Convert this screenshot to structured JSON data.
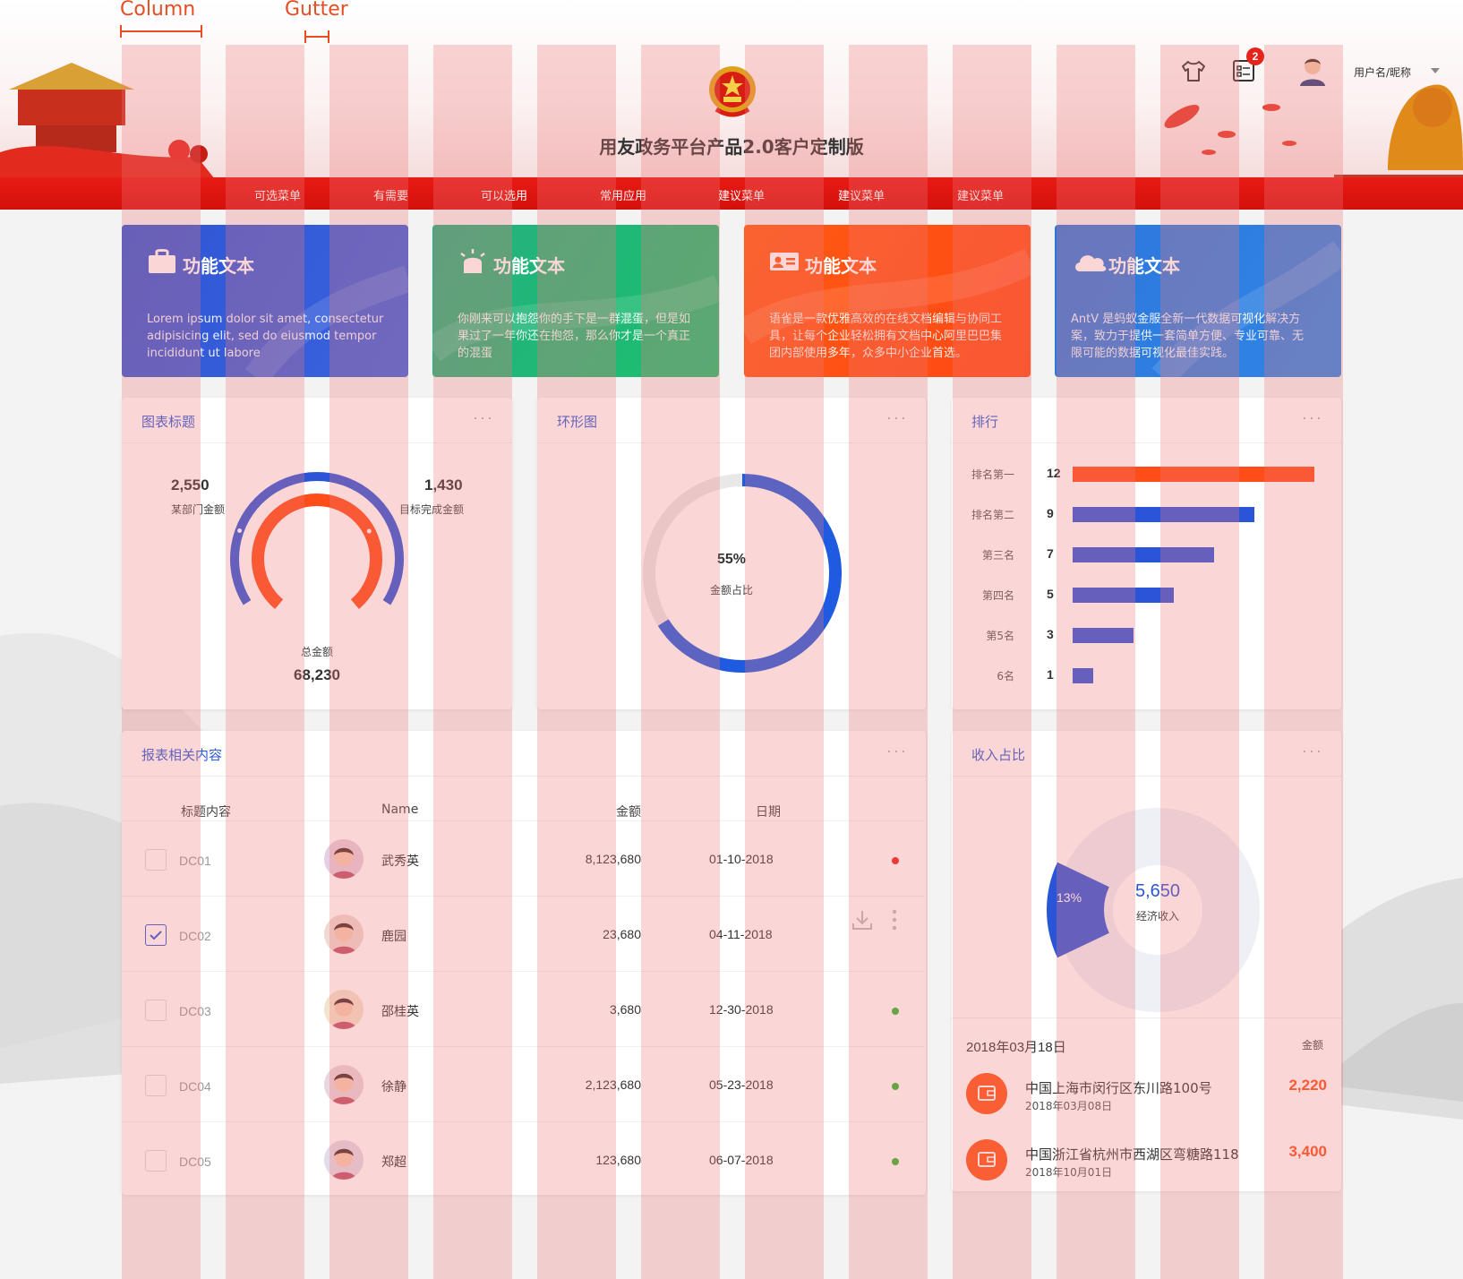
{
  "annotations": {
    "column": "Column",
    "gutter": "Gutter"
  },
  "header": {
    "title": "用友政务平台产品2.0客户定制版",
    "badge_count": "2",
    "user_name": "用户名/昵称",
    "nav": [
      "可选菜单",
      "有需要",
      "可以选用",
      "常用应用",
      "建议菜单",
      "建议菜单",
      "建议菜单"
    ]
  },
  "feature_cards": [
    {
      "title": "功能文本",
      "desc": "Lorem ipsum dolor sit amet, consectetur adipisicing elit, sed do eiusmod tempor incididunt ut labore",
      "icon": "bag-icon",
      "color": "#2f55d4"
    },
    {
      "title": "功能文本",
      "desc": "你刚来可以抱怨你的手下是一群混蛋，但是如果过了一年你还在抱怨，那么你才是一个真正的混蛋",
      "icon": "alarm-light-icon",
      "color": "#1fb17a"
    },
    {
      "title": "功能文本",
      "desc": "语雀是一款优雅高效的在线文档编辑与协同工具，让每个企业轻松拥有文档中心阿里巴巴集团内部使用多年，众多中小企业首选。",
      "icon": "id-card-icon",
      "color": "#ff5210"
    },
    {
      "title": "功能文本",
      "desc": "AntV 是蚂蚁金服全新一代数据可视化解决方案，致力于提供一套简单方便、专业可靠、无限可能的数据可视化最佳实践。",
      "icon": "cloud-icon",
      "color": "#2e7fe0"
    }
  ],
  "gauge_panel": {
    "title": "图表标题",
    "more": "···",
    "left_value": "2,550",
    "left_label": "某部门金额",
    "right_value": "1,430",
    "right_label": "目标完成金额",
    "total_label": "总金额",
    "total_value": "68,230"
  },
  "ring_panel": {
    "title": "环形图",
    "more": "···",
    "percent_text": "55%",
    "percent": 55,
    "label": "金额占比"
  },
  "ranking_panel": {
    "title": "排行",
    "more": "···",
    "items": [
      {
        "label": "排名第一",
        "value": 12,
        "value_text": "12",
        "color": "#ff4d1a"
      },
      {
        "label": "排名第二",
        "value": 9,
        "value_text": "9",
        "color": "#2b55d8"
      },
      {
        "label": "第三名",
        "value": 7,
        "value_text": "7",
        "color": "#2b55d8"
      },
      {
        "label": "第四名",
        "value": 5,
        "value_text": "5",
        "color": "#2b55d8"
      },
      {
        "label": "第5名",
        "value": 3,
        "value_text": "3",
        "color": "#2b55d8"
      },
      {
        "label": "6名",
        "value": 1,
        "value_text": "1",
        "color": "#2b55d8"
      }
    ]
  },
  "report_panel": {
    "title": "报表相关内容",
    "more": "···",
    "columns": [
      "标题内容",
      "Name",
      "金额",
      "日期"
    ],
    "rows": [
      {
        "code": "DC01",
        "name": "武秀英",
        "amount": "8,123,680",
        "date": "01-10-2018",
        "checked": false,
        "status": "#e8211a",
        "avatar": "girl-glasses-avatar"
      },
      {
        "code": "DC02",
        "name": "鹿园",
        "amount": "23,680",
        "date": "04-11-2018",
        "checked": true,
        "status": "",
        "avatar": "boy-avatar"
      },
      {
        "code": "DC03",
        "name": "邵桂英",
        "amount": "3,680",
        "date": "12-30-2018",
        "checked": false,
        "status": "#2eb82e",
        "avatar": "girl-avatar"
      },
      {
        "code": "DC04",
        "name": "徐静",
        "amount": "2,123,680",
        "date": "05-23-2018",
        "checked": false,
        "status": "#2eb82e",
        "avatar": "woman-avatar"
      },
      {
        "code": "DC05",
        "name": "郑超",
        "amount": "123,680",
        "date": "06-07-2018",
        "checked": false,
        "status": "#2eb82e",
        "avatar": "man-avatar"
      }
    ]
  },
  "income_panel": {
    "title": "收入占比",
    "more": "···",
    "slice_percent_text": "13%",
    "slice_percent": 13,
    "center_value": "5,650",
    "center_label": "经济收入",
    "list_date": "2018年03月18日",
    "list_amount_header": "金额",
    "items": [
      {
        "address": "中国上海市闵行区东川路100号",
        "date": "2018年03月08日",
        "amount": "2,220"
      },
      {
        "address": "中国浙江省杭州市西湖区弯糖路118",
        "date": "2018年10月01日",
        "amount": "3,400"
      }
    ]
  },
  "colors": {
    "primary_red": "#e01812",
    "accent_blue": "#2b55d8",
    "accent_orange": "#ff4d1a"
  }
}
